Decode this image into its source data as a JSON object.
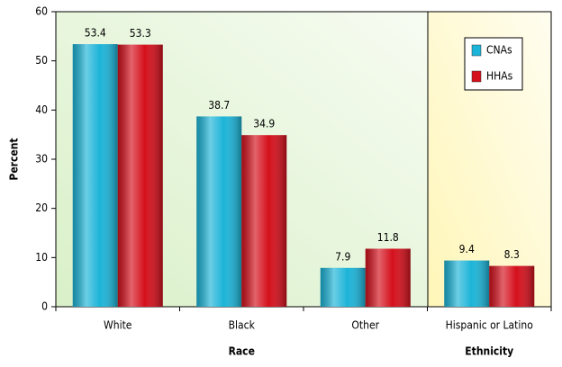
{
  "chart_data": {
    "type": "bar",
    "x_group_labels": [
      "Race",
      "Ethnicity"
    ],
    "y_label": "Percent",
    "categories": [
      "White",
      "Black",
      "Other",
      "Hispanic or Latino"
    ],
    "series": [
      {
        "name": "CNAs",
        "color": "#1cb4d8",
        "values": [
          53.4,
          38.7,
          7.9,
          9.4
        ]
      },
      {
        "name": "HHAs",
        "color": "#d4101c",
        "values": [
          53.3,
          34.9,
          11.8,
          8.3
        ]
      }
    ],
    "ylim": [
      0,
      60
    ],
    "yticks": [
      0,
      10,
      20,
      30,
      40,
      50,
      60
    ],
    "legend": "top-right"
  }
}
